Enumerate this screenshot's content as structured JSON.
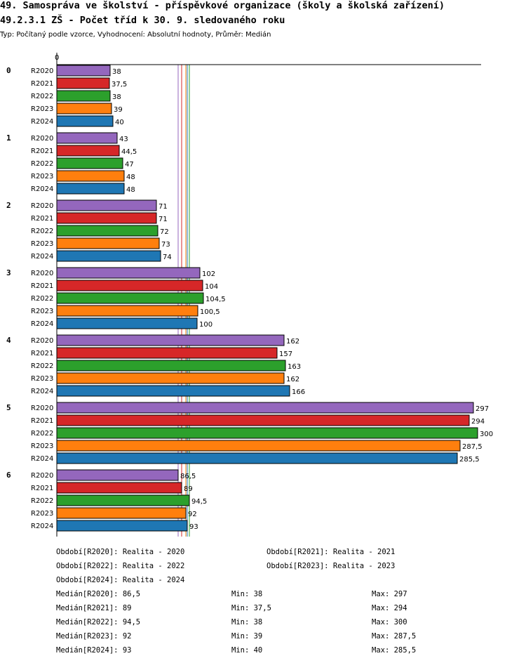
{
  "title": "49. Samospráva ve školství - příspěvkové organizace (školy a školská zařízení)",
  "subtitle": "49.2.3.1 ZŠ - Počet tříd k 30. 9. sledovaného roku",
  "type_line": "Typ: Počítaný podle vzorce, Vyhodnocení: Absolutní hodnoty, Průměr: Medián",
  "colors": {
    "R2020": "#9467bd",
    "R2021": "#d62728",
    "R2022": "#2ca02c",
    "R2023": "#ff7f0e",
    "R2024": "#1f77b4"
  },
  "chart_data": {
    "type": "bar",
    "orientation": "horizontal",
    "axis_zero_label": "0",
    "xlim": [
      0,
      300
    ],
    "categories": [
      "0",
      "1",
      "2",
      "3",
      "4",
      "5",
      "6"
    ],
    "series": [
      {
        "name": "R2020",
        "values": [
          38,
          43,
          71,
          102,
          162,
          297,
          86.5
        ],
        "labels": [
          "38",
          "43",
          "71",
          "102",
          "162",
          "297",
          "86,5"
        ]
      },
      {
        "name": "R2021",
        "values": [
          37.5,
          44.5,
          71,
          104,
          157,
          294,
          89
        ],
        "labels": [
          "37,5",
          "44,5",
          "71",
          "104",
          "157",
          "294",
          "89"
        ]
      },
      {
        "name": "R2022",
        "values": [
          38,
          47,
          72,
          104.5,
          163,
          300,
          94.5
        ],
        "labels": [
          "38",
          "47",
          "72",
          "104,5",
          "163",
          "300",
          "94,5"
        ]
      },
      {
        "name": "R2023",
        "values": [
          39,
          48,
          73,
          100.5,
          162,
          287.5,
          92
        ],
        "labels": [
          "39",
          "48",
          "73",
          "100,5",
          "162",
          "287,5",
          "92"
        ]
      },
      {
        "name": "R2024",
        "values": [
          40,
          48,
          74,
          100,
          166,
          285.5,
          93
        ],
        "labels": [
          "40",
          "48",
          "74",
          "100",
          "166",
          "285,5",
          "93"
        ]
      }
    ],
    "median_lines": [
      {
        "series": "R2020",
        "value": 86.5
      },
      {
        "series": "R2021",
        "value": 89
      },
      {
        "series": "R2022",
        "value": 94.5
      },
      {
        "series": "R2023",
        "value": 92
      },
      {
        "series": "R2024",
        "value": 93
      }
    ]
  },
  "legend": {
    "periods": [
      "Období[R2020]: Realita - 2020",
      "Období[R2021]: Realita - 2021",
      "Období[R2022]: Realita - 2022",
      "Období[R2023]: Realita - 2023",
      "Období[R2024]: Realita - 2024"
    ],
    "stats": [
      {
        "median": "Medián[R2020]: 86,5",
        "min": "Min: 38",
        "max": "Max: 297"
      },
      {
        "median": "Medián[R2021]: 89",
        "min": "Min: 37,5",
        "max": "Max: 294"
      },
      {
        "median": "Medián[R2022]: 94,5",
        "min": "Min: 38",
        "max": "Max: 300"
      },
      {
        "median": "Medián[R2023]: 92",
        "min": "Min: 39",
        "max": "Max: 287,5"
      },
      {
        "median": "Medián[R2024]: 93",
        "min": "Min: 40",
        "max": "Max: 285,5"
      }
    ]
  }
}
